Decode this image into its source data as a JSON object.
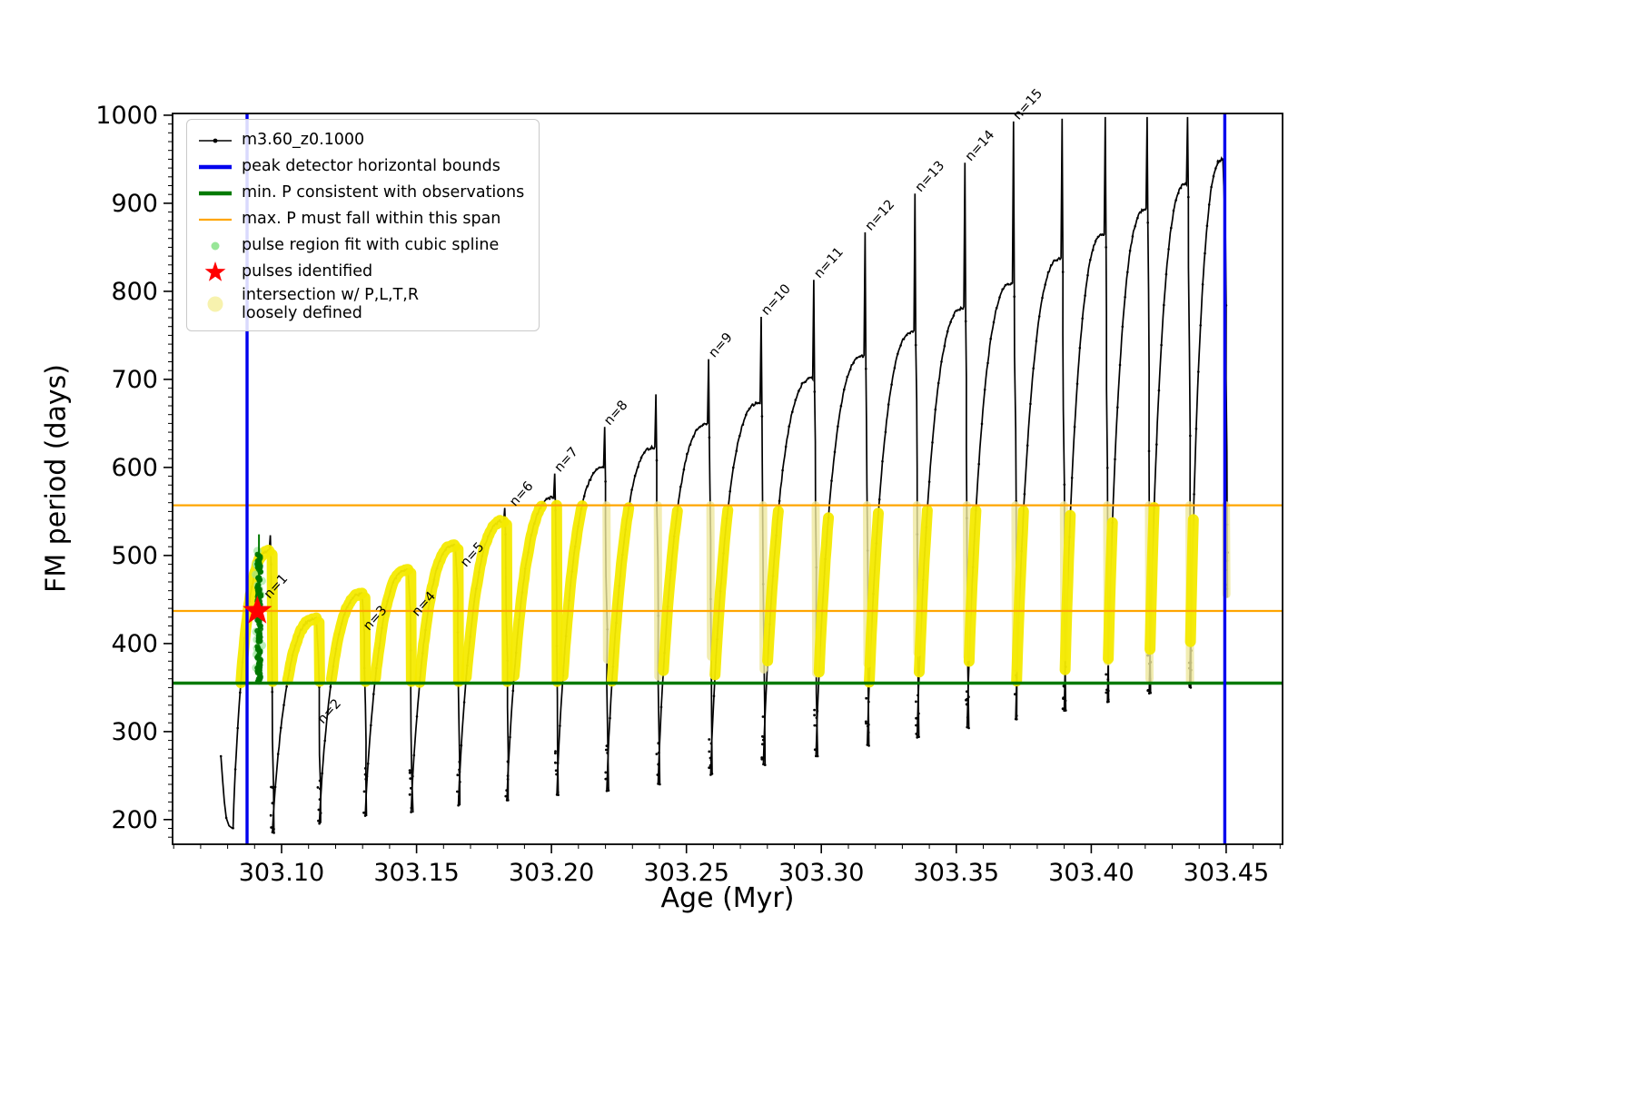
{
  "chart_data": {
    "type": "line",
    "title": "",
    "xlabel": "Age (Myr)",
    "ylabel": "FM period (days)",
    "xlim": [
      303.0596,
      303.4709
    ],
    "ylim": [
      172,
      1002
    ],
    "xticks": [
      303.1,
      303.15,
      303.2,
      303.25,
      303.3,
      303.35,
      303.4,
      303.45
    ],
    "xtick_labels": [
      "303.10",
      "303.15",
      "303.20",
      "303.25",
      "303.30",
      "303.35",
      "303.40",
      "303.45"
    ],
    "yticks": [
      200,
      300,
      400,
      500,
      600,
      700,
      800,
      900,
      1000
    ],
    "x_minor_step": 0.01,
    "y_minor_step": 10,
    "grid": false,
    "legend_position": "upper-left",
    "series_label": "m3.60_z0.1000",
    "colors": {
      "series": "#000000",
      "peak_bounds": "#0000ee",
      "min_P": "#007a00",
      "max_P": "#ffa500",
      "spline_fit": "#98e698",
      "pulse_cluster": "#007800",
      "star": "#ff0000",
      "intersection": "#f4ea00",
      "intersection_faint": "#efe99d"
    },
    "peak_detector_bounds_x": [
      303.0872,
      303.4495
    ],
    "min_P_line_y": 355,
    "max_P_span_y": [
      437,
      557
    ],
    "intersection_band_y": [
      355,
      557
    ],
    "star_point": {
      "x": 303.091,
      "y": 437
    },
    "spline_cluster": {
      "x_center": 303.0916,
      "x_spread": 0.0013,
      "y_min": 356,
      "y_max": 502,
      "line_top": 524
    },
    "pre_tail": [
      [
        303.0775,
        272
      ],
      [
        303.0781,
        246
      ],
      [
        303.0788,
        220
      ],
      [
        303.0795,
        202
      ],
      [
        303.0805,
        193
      ],
      [
        303.0818,
        190
      ]
    ],
    "pulses": [
      {
        "x_start": 303.082,
        "x_end": 303.0966,
        "y_min": 190,
        "y_hump": 505,
        "y_spike": 523
      },
      {
        "x_start": 303.0966,
        "x_end": 303.114,
        "y_min": 185,
        "y_hump": 428,
        "y_spike": 433
      },
      {
        "x_start": 303.114,
        "x_end": 303.131,
        "y_min": 196,
        "y_hump": 456,
        "y_spike": 461
      },
      {
        "x_start": 303.131,
        "x_end": 303.148,
        "y_min": 204,
        "y_hump": 484,
        "y_spike": 489
      },
      {
        "x_start": 303.148,
        "x_end": 303.1655,
        "y_min": 208,
        "y_hump": 511,
        "y_spike": 517
      },
      {
        "x_start": 303.1655,
        "x_end": 303.1835,
        "y_min": 216,
        "y_hump": 539,
        "y_spike": 554
      },
      {
        "x_start": 303.1835,
        "x_end": 303.202,
        "y_min": 222,
        "y_hump": 566,
        "y_spike": 593
      },
      {
        "x_start": 303.202,
        "x_end": 303.2205,
        "y_min": 228,
        "y_hump": 599,
        "y_spike": 646
      },
      {
        "x_start": 303.2205,
        "x_end": 303.2395,
        "y_min": 233,
        "y_hump": 623,
        "y_spike": 683
      },
      {
        "x_start": 303.2395,
        "x_end": 303.259,
        "y_min": 240,
        "y_hump": 649,
        "y_spike": 723
      },
      {
        "x_start": 303.259,
        "x_end": 303.2785,
        "y_min": 252,
        "y_hump": 673,
        "y_spike": 771
      },
      {
        "x_start": 303.2785,
        "x_end": 303.298,
        "y_min": 262,
        "y_hump": 701,
        "y_spike": 813
      },
      {
        "x_start": 303.298,
        "x_end": 303.317,
        "y_min": 272,
        "y_hump": 727,
        "y_spike": 867
      },
      {
        "x_start": 303.317,
        "x_end": 303.3355,
        "y_min": 284,
        "y_hump": 754,
        "y_spike": 911
      },
      {
        "x_start": 303.3355,
        "x_end": 303.354,
        "y_min": 294,
        "y_hump": 781,
        "y_spike": 946
      },
      {
        "x_start": 303.354,
        "x_end": 303.372,
        "y_min": 304,
        "y_hump": 809,
        "y_spike": 993
      },
      {
        "x_start": 303.372,
        "x_end": 303.39,
        "y_min": 314,
        "y_hump": 837,
        "y_spike": 996
      },
      {
        "x_start": 303.39,
        "x_end": 303.406,
        "y_min": 324,
        "y_hump": 865,
        "y_spike": 998
      },
      {
        "x_start": 303.406,
        "x_end": 303.4215,
        "y_min": 334,
        "y_hump": 893,
        "y_spike": 998
      },
      {
        "x_start": 303.4215,
        "x_end": 303.4365,
        "y_min": 344,
        "y_hump": 922,
        "y_spike": 998
      },
      {
        "x_start": 303.4365,
        "x_end": 303.45,
        "y_min": 350,
        "y_hump": 950,
        "y_spike": 951,
        "drop_to": 452
      }
    ],
    "pulse_labels": [
      {
        "text": "n=1",
        "x": 303.0952,
        "y": 448
      },
      {
        "text": "n=2",
        "x": 303.115,
        "y": 306
      },
      {
        "text": "n=3",
        "x": 303.132,
        "y": 412
      },
      {
        "text": "n=4",
        "x": 303.15,
        "y": 428
      },
      {
        "text": "n=5",
        "x": 303.168,
        "y": 484
      },
      {
        "text": "n=6",
        "x": 303.1862,
        "y": 553
      },
      {
        "text": "n=7",
        "x": 303.2028,
        "y": 592
      },
      {
        "text": "n=8",
        "x": 303.2212,
        "y": 645
      },
      {
        "text": "n=9",
        "x": 303.26,
        "y": 722
      },
      {
        "text": "n=10",
        "x": 303.2795,
        "y": 770
      },
      {
        "text": "n=11",
        "x": 303.299,
        "y": 812
      },
      {
        "text": "n=12",
        "x": 303.318,
        "y": 866
      },
      {
        "text": "n=13",
        "x": 303.3365,
        "y": 910
      },
      {
        "text": "n=14",
        "x": 303.355,
        "y": 945
      },
      {
        "text": "n=15",
        "x": 303.3728,
        "y": 992
      }
    ]
  },
  "legend": {
    "entries": [
      {
        "label": "m3.60_z0.1000",
        "marker": "line-dot",
        "color": "#000000"
      },
      {
        "label": "peak detector horizontal bounds",
        "marker": "thick-line",
        "color": "#0000ee"
      },
      {
        "label": "min. P consistent with observations",
        "marker": "thick-line",
        "color": "#007a00"
      },
      {
        "label": "max. P must fall within this span",
        "marker": "line",
        "color": "#ffa500"
      },
      {
        "label": "pulse region fit with cubic spline",
        "marker": "dot-small",
        "color": "#98e698"
      },
      {
        "label": "pulses identified",
        "marker": "star",
        "color": "#ff0000"
      },
      {
        "label": "intersection w/ P,L,T,R\nloosely defined",
        "marker": "dot-large",
        "color": "#f7f2ae"
      }
    ]
  }
}
